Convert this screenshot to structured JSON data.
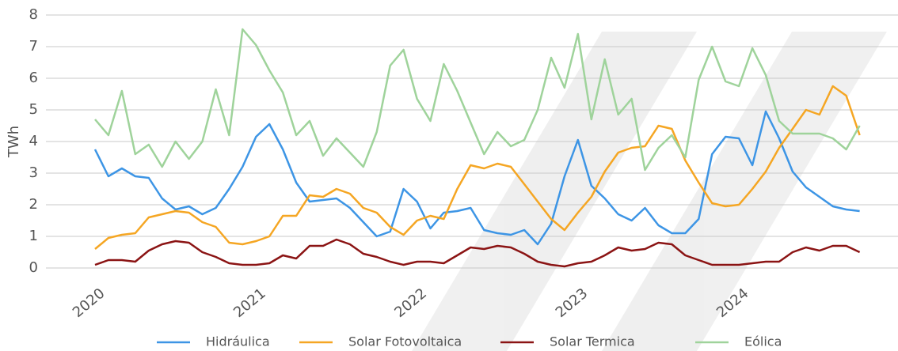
{
  "chart_data": {
    "type": "line",
    "y_label": "TWh",
    "categories": [
      "2020",
      null,
      null,
      null,
      null,
      null,
      null,
      null,
      null,
      null,
      null,
      null,
      "2021",
      null,
      null,
      null,
      null,
      null,
      null,
      null,
      null,
      null,
      null,
      null,
      "2022",
      null,
      null,
      null,
      null,
      null,
      null,
      null,
      null,
      null,
      null,
      null,
      "2023",
      null,
      null,
      null,
      null,
      null,
      null,
      null,
      null,
      null,
      null,
      null,
      "2024",
      null,
      null,
      null,
      null,
      null,
      null,
      null,
      null,
      null
    ],
    "series": [
      {
        "name": "Hidráulica",
        "color": "#3d95e5",
        "values": [
          3.75,
          2.9,
          3.15,
          2.9,
          2.85,
          2.2,
          1.85,
          1.95,
          1.7,
          1.9,
          2.5,
          3.2,
          4.15,
          4.55,
          3.75,
          2.7,
          2.1,
          2.15,
          2.2,
          1.9,
          1.45,
          1.0,
          1.15,
          2.5,
          2.1,
          1.25,
          1.75,
          1.8,
          1.9,
          1.2,
          1.1,
          1.05,
          1.2,
          0.75,
          1.4,
          2.9,
          4.05,
          2.6,
          2.2,
          1.7,
          1.5,
          1.9,
          1.35,
          1.1,
          1.1,
          1.55,
          3.6,
          4.15,
          4.1,
          3.25,
          4.95,
          4.1,
          3.05,
          2.55,
          2.25,
          1.95,
          1.85,
          1.8
        ]
      },
      {
        "name": "Solar Fotovoltaica",
        "color": "#f5a623",
        "values": [
          0.6,
          0.95,
          1.05,
          1.1,
          1.6,
          1.7,
          1.8,
          1.75,
          1.45,
          1.3,
          0.8,
          0.75,
          0.85,
          1.0,
          1.65,
          1.65,
          2.3,
          2.25,
          2.5,
          2.35,
          1.9,
          1.75,
          1.3,
          1.05,
          1.5,
          1.65,
          1.55,
          2.5,
          3.25,
          3.15,
          3.3,
          3.2,
          2.65,
          2.1,
          1.55,
          1.2,
          1.75,
          2.25,
          3.05,
          3.65,
          3.8,
          3.85,
          4.5,
          4.4,
          3.4,
          2.7,
          2.05,
          1.95,
          2.0,
          2.5,
          3.05,
          3.8,
          4.4,
          5.0,
          4.85,
          5.75,
          5.45,
          4.2
        ]
      },
      {
        "name": "Solar Termica",
        "color": "#8b1414",
        "values": [
          0.1,
          0.25,
          0.25,
          0.2,
          0.55,
          0.75,
          0.85,
          0.8,
          0.5,
          0.35,
          0.15,
          0.1,
          0.1,
          0.15,
          0.4,
          0.3,
          0.7,
          0.7,
          0.9,
          0.75,
          0.45,
          0.35,
          0.2,
          0.1,
          0.2,
          0.2,
          0.15,
          0.4,
          0.65,
          0.6,
          0.7,
          0.65,
          0.45,
          0.2,
          0.1,
          0.05,
          0.15,
          0.2,
          0.4,
          0.65,
          0.55,
          0.6,
          0.8,
          0.75,
          0.4,
          0.25,
          0.1,
          0.1,
          0.1,
          0.15,
          0.2,
          0.2,
          0.5,
          0.65,
          0.55,
          0.7,
          0.7,
          0.5
        ]
      },
      {
        "name": "Eólica",
        "color": "#9fd39b",
        "values": [
          4.7,
          4.2,
          5.6,
          3.6,
          3.9,
          3.2,
          4.0,
          3.45,
          4.0,
          5.65,
          4.2,
          7.55,
          7.05,
          6.25,
          5.55,
          4.2,
          4.65,
          3.55,
          4.1,
          3.65,
          3.2,
          4.3,
          6.4,
          6.9,
          5.35,
          4.65,
          6.45,
          5.6,
          4.6,
          3.6,
          4.3,
          3.85,
          4.05,
          5.0,
          6.65,
          5.7,
          7.4,
          4.7,
          6.6,
          4.85,
          5.35,
          3.1,
          3.8,
          4.2,
          3.5,
          5.95,
          7.0,
          5.9,
          5.75,
          6.95,
          6.1,
          4.65,
          4.25,
          4.25,
          4.25,
          4.1,
          3.75,
          4.5
        ]
      }
    ],
    "ylim": [
      0,
      8
    ],
    "yticks": [
      0,
      1,
      2,
      3,
      4,
      5,
      6,
      7,
      8
    ],
    "grid": true,
    "legend": "bottom"
  }
}
